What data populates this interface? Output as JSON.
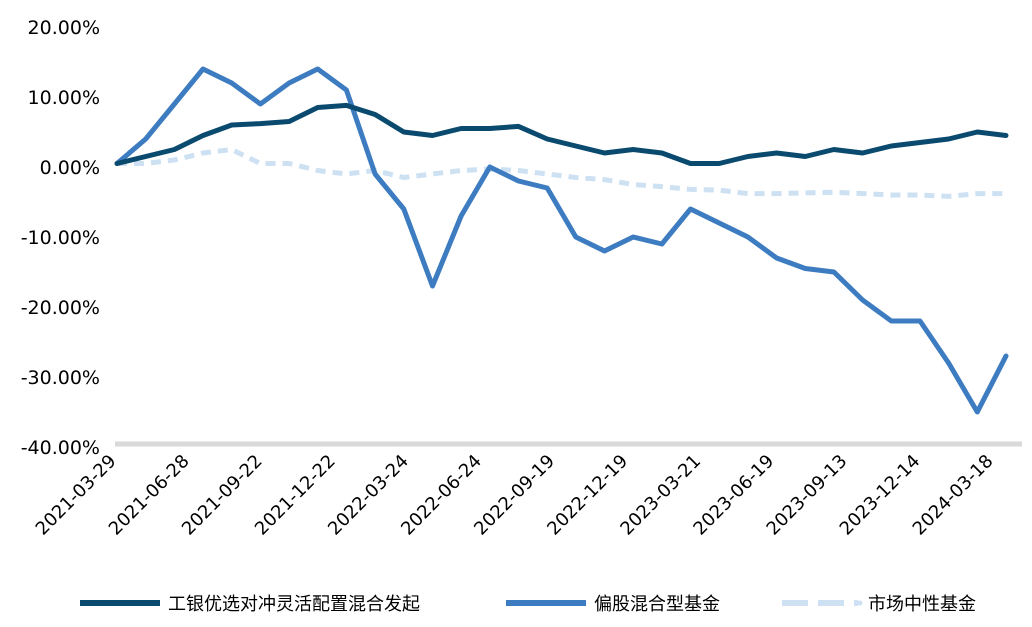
{
  "chart_data": {
    "type": "line",
    "title": "",
    "xlabel": "",
    "ylabel": "",
    "ylim": [
      -40,
      20
    ],
    "y_tick_values": [
      20,
      10,
      0,
      -10,
      -20,
      -30,
      -40
    ],
    "y_tick_labels": [
      "20.00%",
      "10.00%",
      "0.00%",
      "-10.00%",
      "-20.00%",
      "-30.00%",
      "-40.00%"
    ],
    "x_tick_labels": [
      "2021-03-29",
      "2021-06-28",
      "2021-09-22",
      "2021-12-22",
      "2022-03-24",
      "2022-06-24",
      "2022-09-19",
      "2022-12-19",
      "2023-03-21",
      "2023-06-19",
      "2023-09-13",
      "2023-12-14",
      "2024-03-18"
    ],
    "legend_position": "bottom",
    "grid": false,
    "series": [
      {
        "name": "工银优选对冲灵活配置混合发起",
        "color": "#0b4a6f",
        "style": "solid",
        "values": [
          0.5,
          1.5,
          2.5,
          4.5,
          6,
          6.2,
          6.5,
          8.5,
          8.8,
          7.5,
          5,
          4.5,
          5.5,
          5.5,
          5.8,
          4,
          3,
          2,
          2.5,
          2,
          0.5,
          0.5,
          1.5,
          2,
          1.5,
          2.5,
          2,
          3,
          3.5,
          4,
          5,
          4.5
        ]
      },
      {
        "name": "偏股混合型基金",
        "color": "#3d7cc0",
        "style": "solid",
        "values": [
          0.5,
          4,
          9,
          14,
          12,
          9,
          12,
          14,
          11,
          -1,
          -6,
          -17,
          -7,
          0,
          -2,
          -3,
          -10,
          -12,
          -10,
          -11,
          -6,
          -8,
          -10,
          -13,
          -14.5,
          -15,
          -19,
          -22,
          -22,
          -28,
          -35,
          -27
        ]
      },
      {
        "name": "市场中性基金",
        "color": "#cde1f2",
        "style": "dashed",
        "values": [
          0.5,
          0.5,
          1,
          2,
          2.5,
          0.5,
          0.5,
          -0.5,
          -1,
          -0.5,
          -1.5,
          -1,
          -0.5,
          -0.3,
          -0.5,
          -1,
          -1.5,
          -1.8,
          -2.5,
          -2.8,
          -3.2,
          -3.3,
          -3.8,
          -3.8,
          -3.7,
          -3.6,
          -3.8,
          -4,
          -4,
          -4.2,
          -3.8,
          -3.8
        ]
      }
    ]
  }
}
